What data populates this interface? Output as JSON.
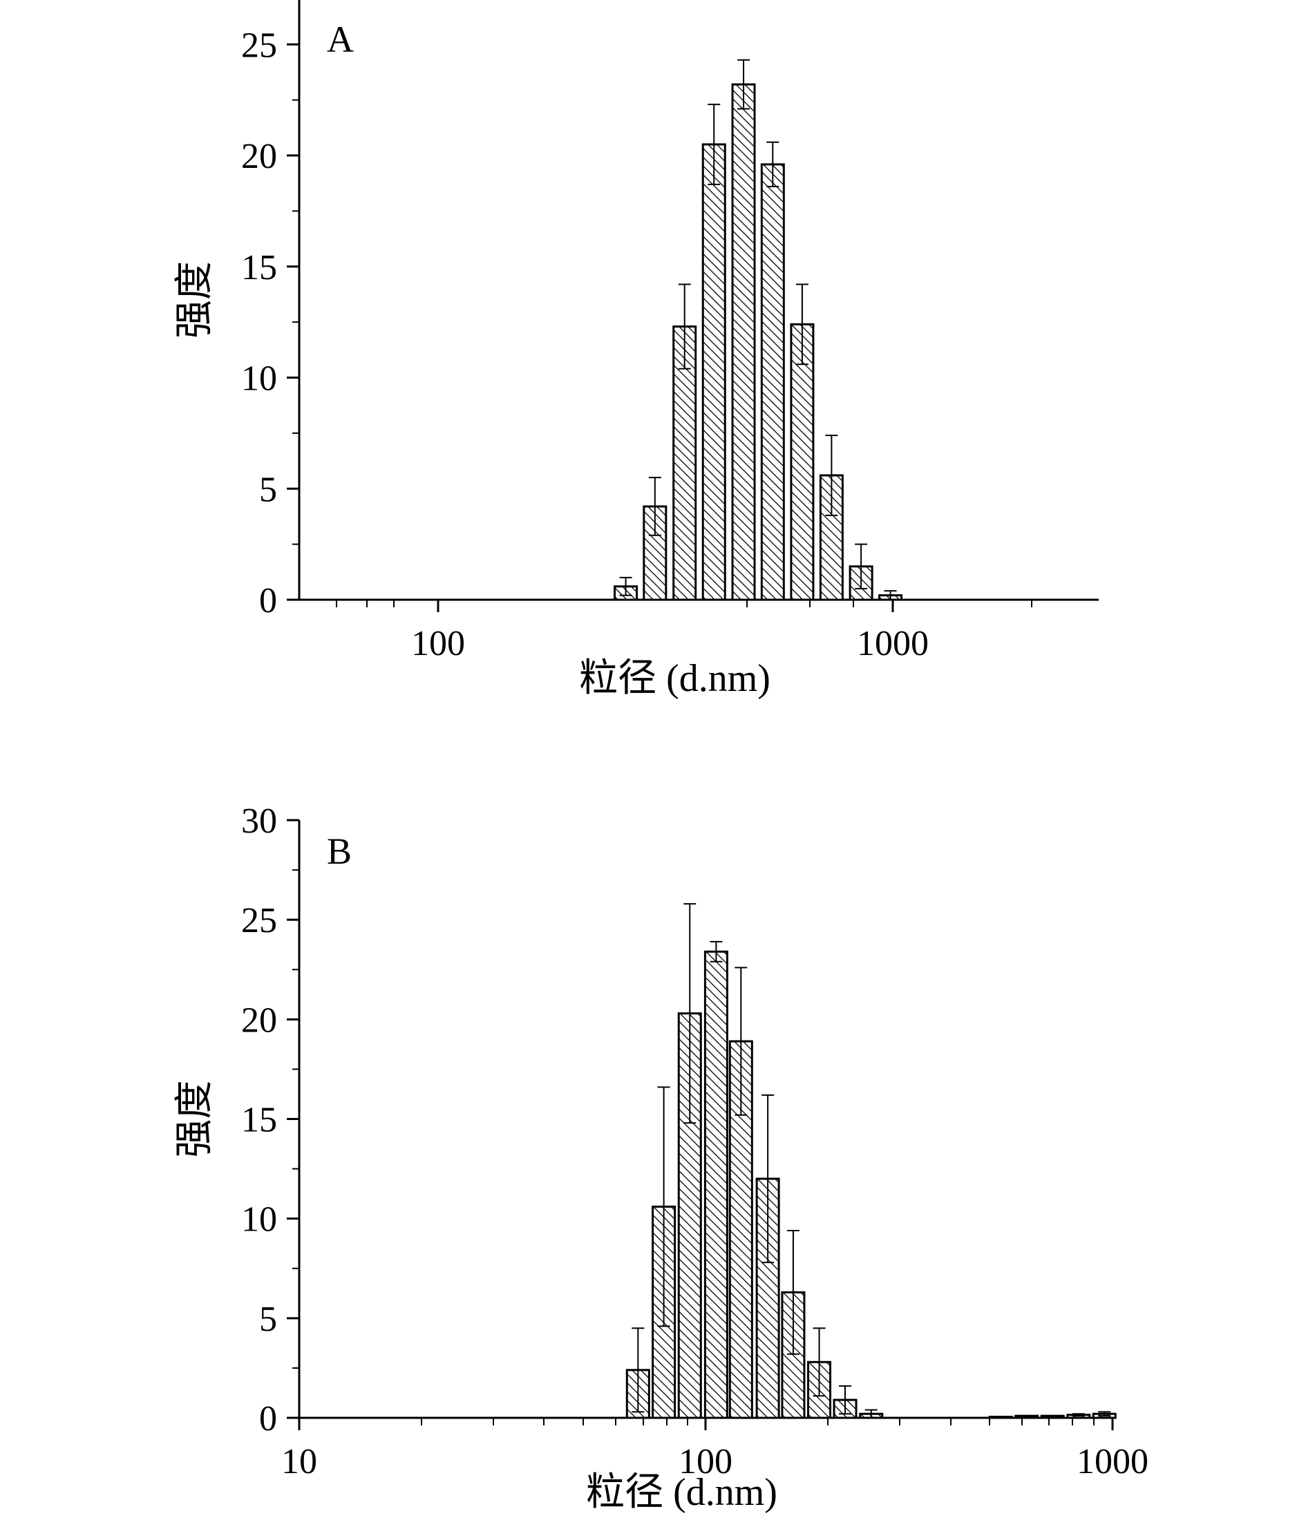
{
  "chart_data": [
    {
      "type": "bar",
      "panel_label": "A",
      "xlabel": "粒径 (d.nm)",
      "ylabel": "强度",
      "x_scale": "log",
      "xlim": [
        50,
        2700
      ],
      "ylim": [
        0,
        27
      ],
      "y_ticks": [
        0,
        5,
        10,
        15,
        20,
        25
      ],
      "x_tick_labels": [
        "100",
        "1000"
      ],
      "grid": false,
      "bars": [
        {
          "x": 255,
          "value": 0.6,
          "error": 0.4
        },
        {
          "x": 295,
          "value": 4.2,
          "error": 1.3
        },
        {
          "x": 342,
          "value": 12.3,
          "error": 1.9
        },
        {
          "x": 396,
          "value": 20.5,
          "error": 1.8
        },
        {
          "x": 459,
          "value": 23.2,
          "error": 1.1
        },
        {
          "x": 531,
          "value": 19.6,
          "error": 1.0
        },
        {
          "x": 615,
          "value": 12.4,
          "error": 1.8
        },
        {
          "x": 712,
          "value": 5.6,
          "error": 1.8
        },
        {
          "x": 825,
          "value": 1.5,
          "error": 1.0
        },
        {
          "x": 955,
          "value": 0.2,
          "error": 0.2
        }
      ]
    },
    {
      "type": "bar",
      "panel_label": "B",
      "xlabel": "粒径 (d.nm)",
      "ylabel": "强度",
      "x_scale": "log",
      "xlim": [
        10,
        1000
      ],
      "ylim": [
        0,
        30
      ],
      "y_ticks": [
        0,
        5,
        10,
        15,
        20,
        25,
        30
      ],
      "x_tick_labels": [
        "10",
        "100",
        "1000"
      ],
      "grid": false,
      "bars": [
        {
          "x": 68.1,
          "value": 2.4,
          "error": 2.1
        },
        {
          "x": 78.8,
          "value": 10.6,
          "error": 6.0
        },
        {
          "x": 91.3,
          "value": 20.3,
          "error": 5.5
        },
        {
          "x": 106,
          "value": 23.4,
          "error": 0.5
        },
        {
          "x": 122,
          "value": 18.9,
          "error": 3.7
        },
        {
          "x": 142,
          "value": 12.0,
          "error": 4.2
        },
        {
          "x": 164,
          "value": 6.3,
          "error": 3.1
        },
        {
          "x": 190,
          "value": 2.8,
          "error": 1.7
        },
        {
          "x": 220,
          "value": 0.9,
          "error": 0.7
        },
        {
          "x": 255,
          "value": 0.2,
          "error": 0.2
        },
        {
          "x": 531,
          "value": 0.05,
          "error": 0.0
        },
        {
          "x": 615,
          "value": 0.1,
          "error": 0.0
        },
        {
          "x": 712,
          "value": 0.1,
          "error": 0.0
        },
        {
          "x": 825,
          "value": 0.15,
          "error": 0.05
        },
        {
          "x": 955,
          "value": 0.2,
          "error": 0.1
        }
      ]
    }
  ]
}
